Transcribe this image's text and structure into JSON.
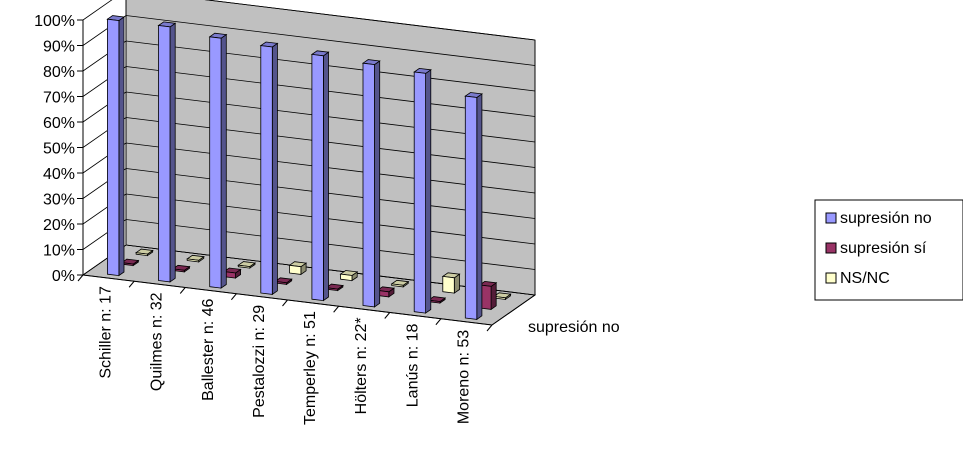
{
  "chart_data": {
    "type": "bar",
    "style": "3d-column",
    "categories": [
      "Schiller n: 17",
      "Quilmes n: 32",
      "Ballester n: 46",
      "Pestalozzi n: 29",
      "Temperley n: 51",
      "Hölters n: 22*",
      "Lanús n: 18",
      "Moreno n: 53"
    ],
    "series": [
      {
        "name": "supresión no",
        "color": "#9999ff",
        "values": [
          100,
          100,
          98,
          97,
          96,
          95,
          94,
          87
        ]
      },
      {
        "name": "supresión sí",
        "color": "#993366",
        "values": [
          0,
          0,
          2,
          0,
          0,
          2,
          0,
          9
        ]
      },
      {
        "name": "NS/NC",
        "color": "#ffffcc",
        "values": [
          0,
          0,
          0,
          3,
          2,
          0,
          6,
          0
        ]
      }
    ],
    "yticks": [
      "0%",
      "10%",
      "20%",
      "30%",
      "40%",
      "50%",
      "60%",
      "70%",
      "80%",
      "90%",
      "100%"
    ],
    "ylim": [
      0,
      100
    ],
    "depth_axis_label": "supresión no",
    "grid": true,
    "legend_position": "right"
  }
}
